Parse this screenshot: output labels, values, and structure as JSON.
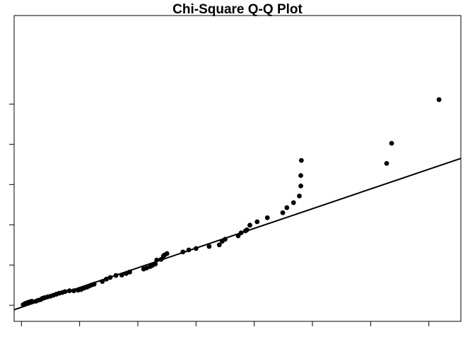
{
  "chart_data": {
    "type": "scatter",
    "title": "Chi-Square Q-Q Plot",
    "xlabel": "",
    "ylabel": "",
    "xlim": [
      -0.25,
      15.1
    ],
    "ylim": [
      -0.8,
      14.4
    ],
    "x_ticks": [
      0,
      2,
      4,
      6,
      8,
      10,
      12,
      14
    ],
    "y_ticks": [
      0,
      2,
      4,
      6,
      8,
      10
    ],
    "tick_labels_shown": false,
    "grid": false,
    "legend": "none",
    "reference_line": {
      "intercept": -0.1,
      "slope": 0.49
    },
    "colors": {
      "points": "#000000",
      "line": "#000000"
    },
    "points": [
      [
        0.06,
        0.03
      ],
      [
        0.13,
        0.09
      ],
      [
        0.2,
        0.13
      ],
      [
        0.28,
        0.17
      ],
      [
        0.36,
        0.2
      ],
      [
        0.5,
        0.2
      ],
      [
        0.58,
        0.25
      ],
      [
        0.66,
        0.28
      ],
      [
        0.72,
        0.34
      ],
      [
        0.8,
        0.38
      ],
      [
        0.9,
        0.42
      ],
      [
        1.0,
        0.45
      ],
      [
        1.1,
        0.5
      ],
      [
        1.2,
        0.55
      ],
      [
        1.3,
        0.6
      ],
      [
        1.4,
        0.63
      ],
      [
        1.5,
        0.68
      ],
      [
        1.65,
        0.72
      ],
      [
        1.8,
        0.72
      ],
      [
        1.95,
        0.75
      ],
      [
        2.05,
        0.78
      ],
      [
        2.15,
        0.85
      ],
      [
        2.25,
        0.9
      ],
      [
        2.32,
        0.95
      ],
      [
        2.4,
        1.0
      ],
      [
        2.5,
        1.05
      ],
      [
        2.78,
        1.18
      ],
      [
        2.92,
        1.3
      ],
      [
        3.05,
        1.38
      ],
      [
        3.25,
        1.48
      ],
      [
        3.45,
        1.5
      ],
      [
        3.6,
        1.58
      ],
      [
        3.72,
        1.65
      ],
      [
        4.2,
        1.8
      ],
      [
        4.3,
        1.85
      ],
      [
        4.42,
        1.92
      ],
      [
        4.5,
        1.98
      ],
      [
        4.6,
        2.05
      ],
      [
        4.65,
        2.25
      ],
      [
        4.8,
        2.28
      ],
      [
        4.88,
        2.45
      ],
      [
        4.92,
        2.5
      ],
      [
        5.0,
        2.57
      ],
      [
        5.55,
        2.65
      ],
      [
        5.75,
        2.75
      ],
      [
        6.0,
        2.82
      ],
      [
        6.45,
        2.92
      ],
      [
        6.8,
        3.0
      ],
      [
        6.9,
        3.18
      ],
      [
        7.0,
        3.28
      ],
      [
        7.45,
        3.45
      ],
      [
        7.55,
        3.6
      ],
      [
        7.7,
        3.7
      ],
      [
        7.75,
        3.75
      ],
      [
        7.85,
        3.98
      ],
      [
        8.1,
        4.15
      ],
      [
        8.45,
        4.35
      ],
      [
        8.98,
        4.6
      ],
      [
        9.12,
        4.85
      ],
      [
        9.35,
        5.1
      ],
      [
        9.55,
        5.43
      ],
      [
        9.6,
        5.93
      ],
      [
        9.6,
        6.45
      ],
      [
        9.62,
        7.2
      ],
      [
        12.55,
        7.05
      ],
      [
        12.72,
        8.05
      ],
      [
        14.35,
        10.22
      ]
    ]
  }
}
